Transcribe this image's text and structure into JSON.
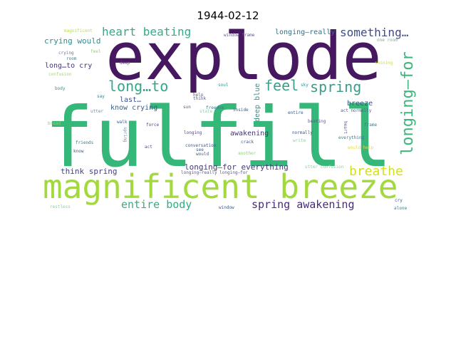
{
  "chart_data": {
    "type": "wordcloud",
    "title": "1944-02-12",
    "words": [
      {
        "text": "explode",
        "color": "#46185f"
      },
      {
        "text": "fulfill",
        "color": "#35b779"
      },
      {
        "text": "magnificent breeze",
        "color": "#a2d93c"
      },
      {
        "text": "longing—for",
        "color": "#3bb77c"
      },
      {
        "text": "long…to",
        "color": "#2fa98a"
      },
      {
        "text": "feel",
        "color": "#3c9f89"
      },
      {
        "text": "spring",
        "color": "#3b9c8a"
      },
      {
        "text": "heart beating",
        "color": "#35a98a"
      },
      {
        "text": "something…",
        "color": "#404a8a"
      },
      {
        "text": "breathe",
        "color": "#d2e11c"
      },
      {
        "text": "entire body",
        "color": "#32ad84"
      },
      {
        "text": "spring awakening",
        "color": "#472c7e"
      },
      {
        "text": "longing—for everything",
        "color": "#46337e"
      },
      {
        "text": "think spring",
        "color": "#423f85"
      },
      {
        "text": "crying would",
        "color": "#2f8c8c"
      },
      {
        "text": "long…to cry",
        "color": "#43357f"
      },
      {
        "text": "know crying",
        "color": "#355f8d"
      },
      {
        "text": "longing—really",
        "color": "#2c728e"
      },
      {
        "text": "deep blue",
        "color": "#3c8c8a"
      },
      {
        "text": "last…",
        "color": "#3b528b"
      },
      {
        "text": "breeze",
        "color": "#3b528b"
      },
      {
        "text": "awakening",
        "color": "#44337f"
      },
      {
        "text": "magnificent",
        "color": "#b7de4a"
      },
      {
        "text": "window frame",
        "color": "#5b5b8a"
      },
      {
        "text": "one room",
        "color": "#7fae9e"
      },
      {
        "text": "crying",
        "color": "#7a6f98"
      },
      {
        "text": "feel",
        "color": "#8fcf7a"
      },
      {
        "text": "confusion",
        "color": "#9fd86a"
      },
      {
        "text": "room",
        "color": "#3b7f8e"
      },
      {
        "text": "deep",
        "color": "#6a3f86"
      },
      {
        "text": "shining",
        "color": "#bfe34e"
      },
      {
        "text": "body",
        "color": "#3a8f8a"
      },
      {
        "text": "soul",
        "color": "#3a8f8a"
      },
      {
        "text": "sky",
        "color": "#3a8f8a"
      },
      {
        "text": "say",
        "color": "#3a7a8c"
      },
      {
        "text": "think",
        "color": "#5b5b8a"
      },
      {
        "text": "help",
        "color": "#5b5b8a"
      },
      {
        "text": "freedom",
        "color": "#3a7a8c"
      },
      {
        "text": "utter",
        "color": "#7a8a9a"
      },
      {
        "text": "sun",
        "color": "#5b5b8a"
      },
      {
        "text": "state",
        "color": "#8fcfa0"
      },
      {
        "text": "inside",
        "color": "#3a5a8c"
      },
      {
        "text": "entire",
        "color": "#3a5a8c"
      },
      {
        "text": "act normally",
        "color": "#5b5b8a"
      },
      {
        "text": "beating",
        "color": "#5b5b8a"
      },
      {
        "text": "frame",
        "color": "#3a7a8c"
      },
      {
        "text": "heart",
        "color": "#5b5b8a"
      },
      {
        "text": "bread",
        "color": "#8fcf7a"
      },
      {
        "text": "walk",
        "color": "#3a5a8c"
      },
      {
        "text": "spring",
        "color": "#7a8a9a"
      },
      {
        "text": "force",
        "color": "#5b3f86"
      },
      {
        "text": "crack",
        "color": "#3a5a8c"
      },
      {
        "text": "friends",
        "color": "#3a7a8c"
      },
      {
        "text": "longing",
        "color": "#5b3f86"
      },
      {
        "text": "normally",
        "color": "#3a5a8c"
      },
      {
        "text": "everything",
        "color": "#3a7a8c"
      },
      {
        "text": "act",
        "color": "#3a5a8c"
      },
      {
        "text": "write",
        "color": "#8fcfa0"
      },
      {
        "text": "conversation",
        "color": "#3a5a8c"
      },
      {
        "text": "know",
        "color": "#3a5a8c"
      },
      {
        "text": "see",
        "color": "#3a5a8c"
      },
      {
        "text": "would",
        "color": "#3a5a8c"
      },
      {
        "text": "another",
        "color": "#8fcf7a"
      },
      {
        "text": "would help",
        "color": "#e3d84a"
      },
      {
        "text": "longing—really longing—for",
        "color": "#5b5b8a"
      },
      {
        "text": "utter confusion",
        "color": "#8fcfa0"
      },
      {
        "text": "restless",
        "color": "#8fcfa0"
      },
      {
        "text": "window",
        "color": "#3a5a8c"
      },
      {
        "text": "cry",
        "color": "#3a5a8c"
      },
      {
        "text": "alone",
        "color": "#3a7a8c"
      }
    ]
  }
}
